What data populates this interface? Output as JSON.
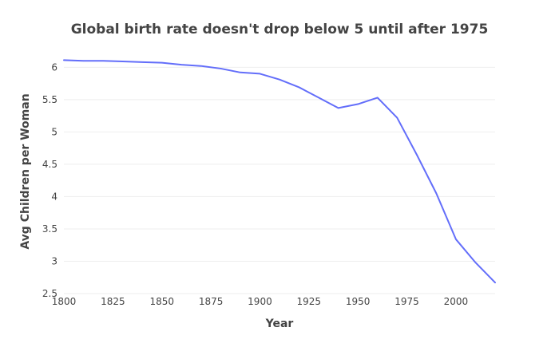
{
  "chart_data": {
    "type": "line",
    "title": "Global birth rate doesn't drop below 5 until after 1975",
    "xlabel": "Year",
    "ylabel": "Avg Children per Woman",
    "xlim": [
      1800,
      2020
    ],
    "ylim": [
      2.5,
      6.3
    ],
    "xticks": [
      1800,
      1825,
      1850,
      1875,
      1900,
      1925,
      1950,
      1975,
      2000
    ],
    "yticks": [
      2.5,
      3,
      3.5,
      4,
      4.5,
      5,
      5.5,
      6
    ],
    "grid": true,
    "legend": "none",
    "colors": {
      "line": "#636efa",
      "grid": "#eeeeee",
      "text": "#444444"
    },
    "series": [
      {
        "x": [
          1800,
          1810,
          1820,
          1830,
          1840,
          1850,
          1860,
          1870,
          1880,
          1890,
          1900,
          1910,
          1920,
          1930,
          1940,
          1950,
          1960,
          1970,
          1980,
          1990,
          2000,
          2010,
          2020
        ],
        "values": [
          6.11,
          6.1,
          6.1,
          6.09,
          6.08,
          6.07,
          6.04,
          6.02,
          5.98,
          5.92,
          5.9,
          5.81,
          5.69,
          5.53,
          5.37,
          5.43,
          5.53,
          5.22,
          4.65,
          4.05,
          3.34,
          2.98,
          2.67
        ]
      }
    ]
  }
}
